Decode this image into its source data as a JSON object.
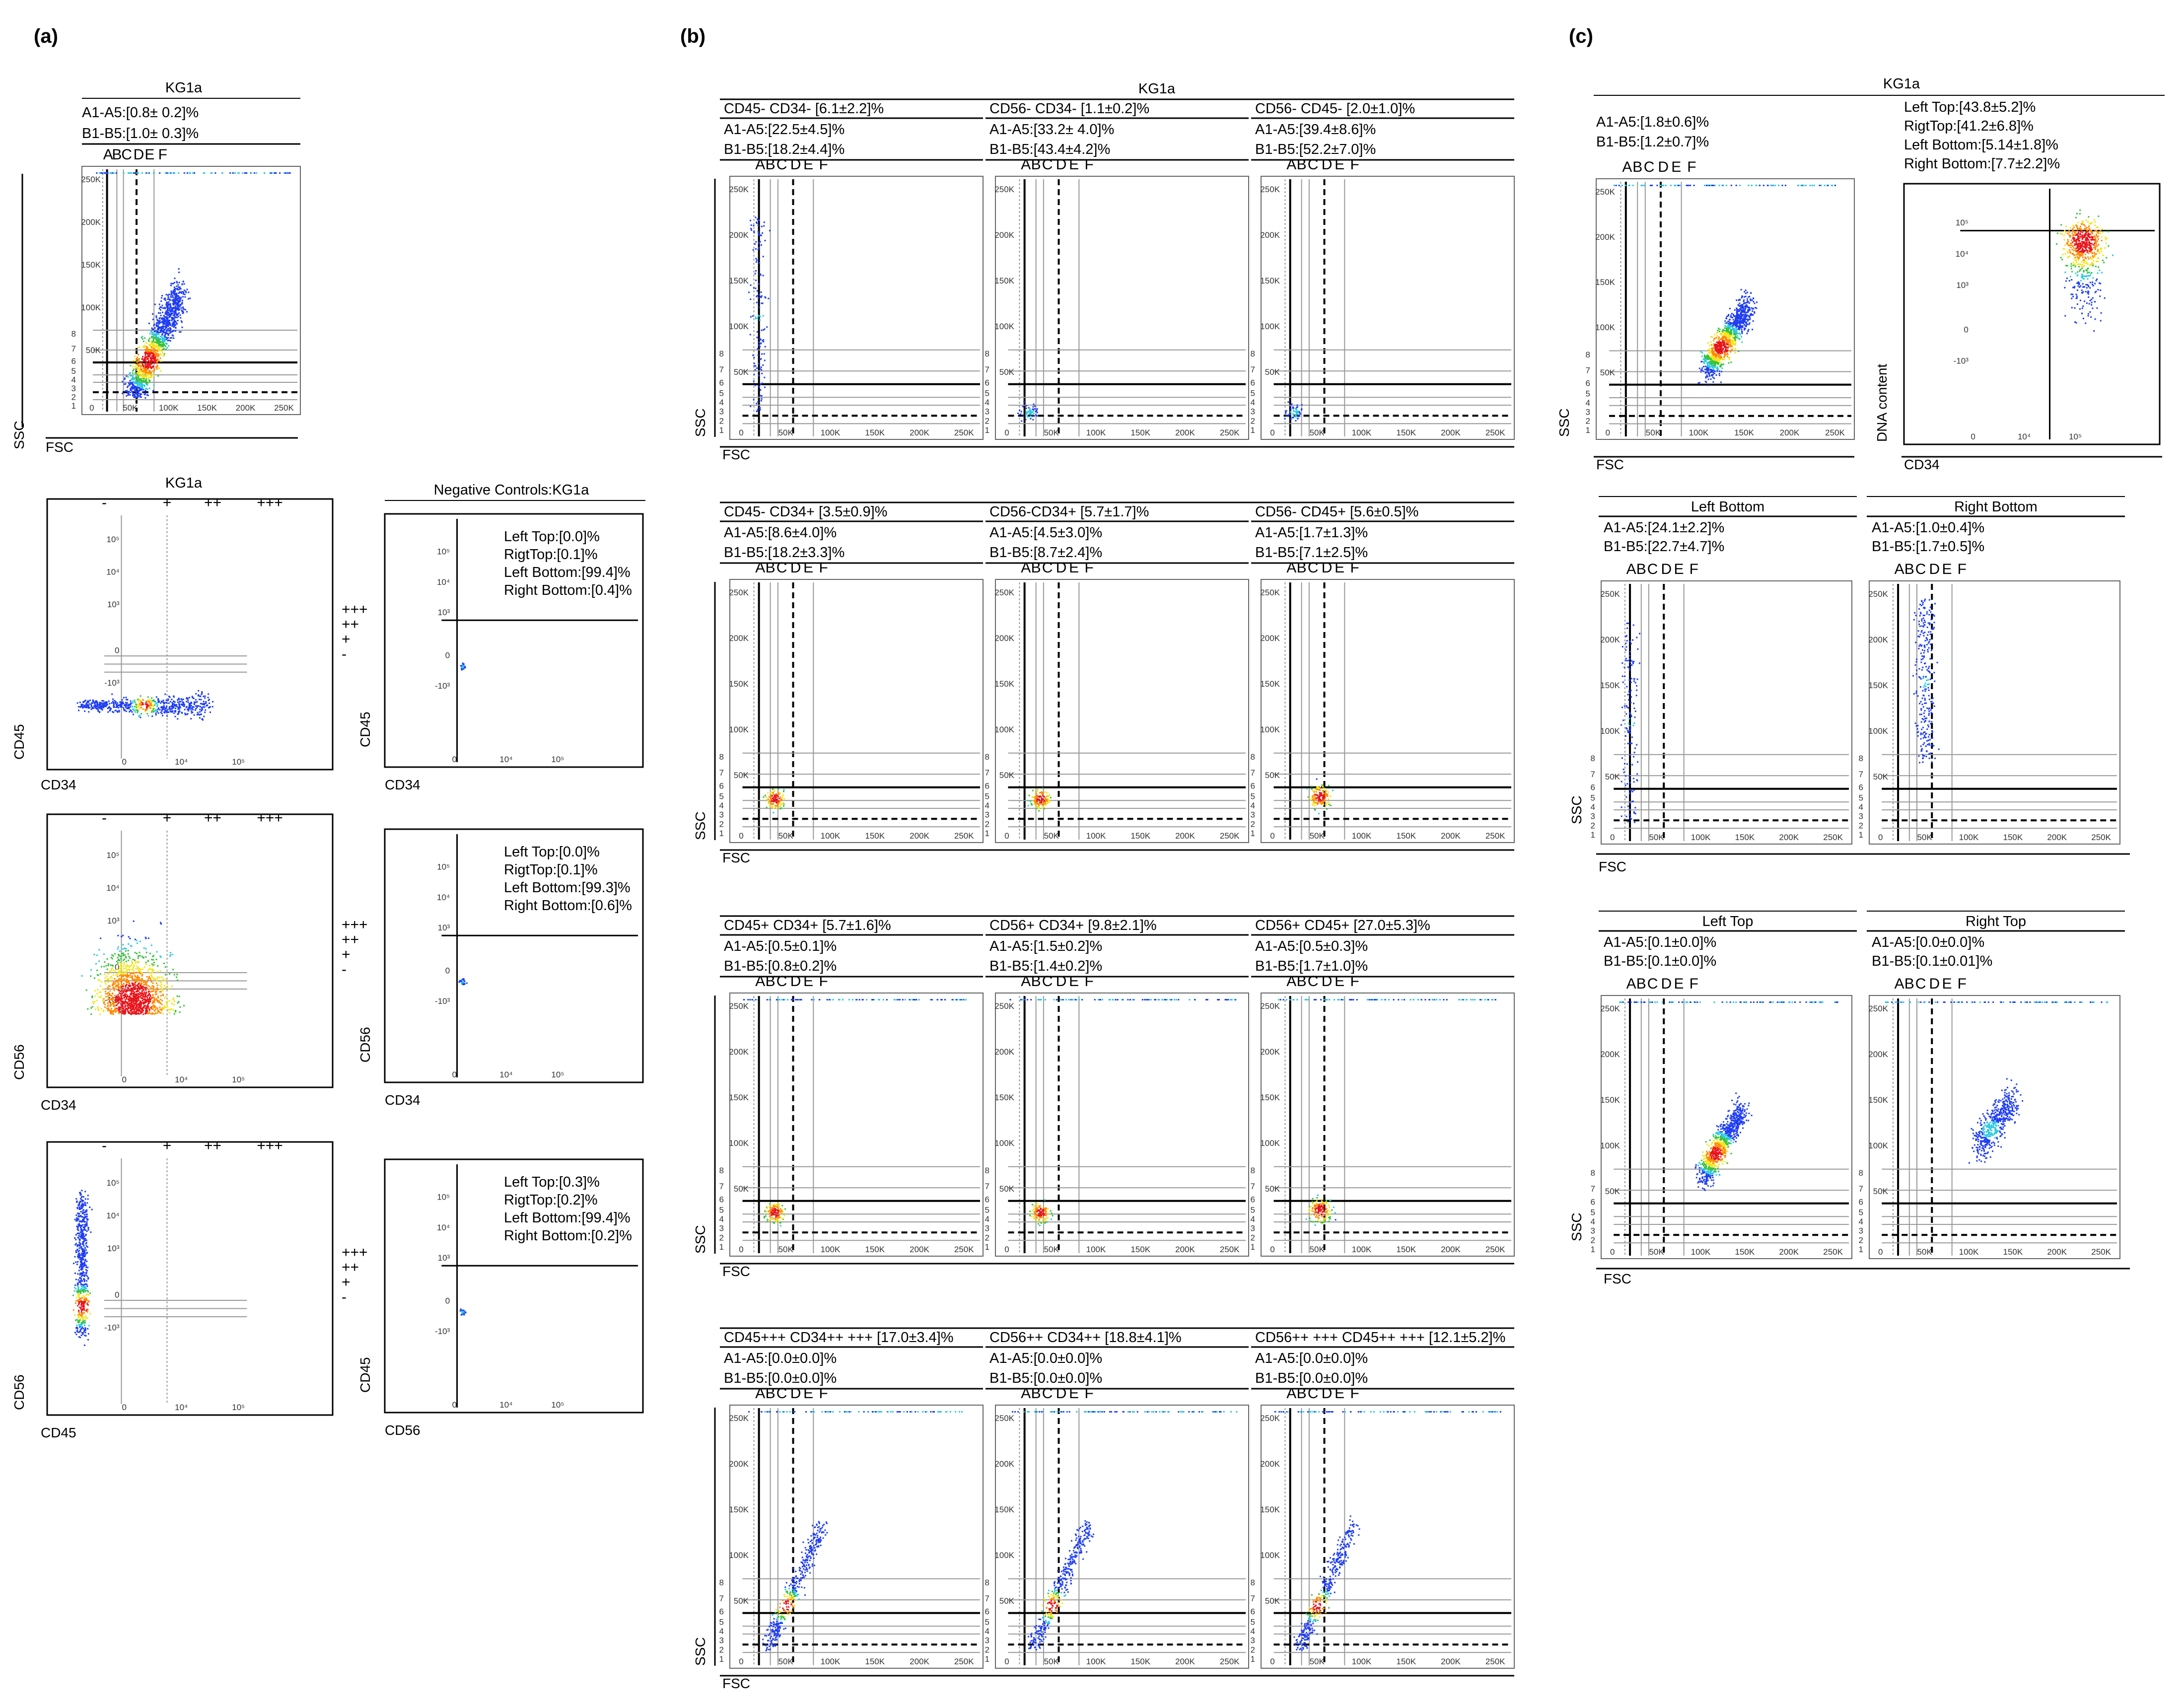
{
  "panels": {
    "a": "(a)",
    "b": "(b)",
    "c": "(c)"
  },
  "colors": {
    "density": [
      "#1f3df2",
      "#2cc8e0",
      "#34c23a",
      "#f2e51a",
      "#ff8a00",
      "#e8141a"
    ],
    "frame": "#000000",
    "grid": "#9a9a9a"
  },
  "labels": {
    "fsc": "FSC",
    "ssc": "SSC",
    "cd34": "CD34",
    "cd45": "CD45",
    "cd56": "CD56",
    "dna": "DNA content",
    "fsc_ticks": [
      "0",
      "50K",
      "100K",
      "150K",
      "200K",
      "250K"
    ],
    "ssc_ticks": [
      "250K",
      "200K",
      "150K",
      "100K",
      "50K",
      "0"
    ],
    "log_ticks": [
      "0",
      "10⁴",
      "10⁵"
    ],
    "log_yticks": [
      "10⁵",
      "10⁴",
      "10³",
      "0",
      "-10³"
    ],
    "gates_x": [
      "A",
      "B",
      "C",
      "D",
      "E",
      "F"
    ],
    "gates_y": [
      "8",
      "7",
      "6",
      "5",
      "4",
      "3",
      "2",
      "1"
    ],
    "intensity": [
      "-",
      "+",
      "++",
      "+++"
    ],
    "intensity_side": [
      "+++",
      "++",
      "+",
      "-"
    ]
  },
  "chart_data": [
    {
      "id": "a-fsc-ssc",
      "type": "scatter",
      "title": "KG1a",
      "stats": [
        "A1-A5:[0.8± 0.2]%",
        "B1-B5:[1.0± 0.3]%"
      ],
      "xlabel": "FSC",
      "ylabel": "SSC",
      "xlim": [
        0,
        262144
      ],
      "ylim": [
        0,
        262144
      ]
    },
    {
      "id": "a-cd34-cd45",
      "type": "scatter",
      "title": "KG1a",
      "xlabel": "CD34",
      "ylabel": "CD45",
      "scale": "biexponential"
    },
    {
      "id": "a-cd34-cd56",
      "type": "scatter",
      "xlabel": "CD34",
      "ylabel": "CD56",
      "scale": "biexponential"
    },
    {
      "id": "a-cd45-cd56",
      "type": "scatter",
      "xlabel": "CD45",
      "ylabel": "CD56",
      "scale": "biexponential"
    },
    {
      "id": "a-neg-1",
      "type": "scatter",
      "title": "Negative Controls:KG1a",
      "xlabel": "CD34",
      "ylabel": "CD45",
      "quadrants": [
        "Left Top:[0.0]%",
        "RigtTop:[0.1]%",
        "Left Bottom:[99.4]%",
        "Right Bottom:[0.4]%"
      ]
    },
    {
      "id": "a-neg-2",
      "type": "scatter",
      "xlabel": "CD34",
      "ylabel": "CD56",
      "quadrants": [
        "Left Top:[0.0]%",
        "RigtTop:[0.1]%",
        "Left Bottom:[99.3]%",
        "Right Bottom:[0.6]%"
      ]
    },
    {
      "id": "a-neg-3",
      "type": "scatter",
      "xlabel": "CD56",
      "ylabel": "CD45",
      "quadrants": [
        "Left Top:[0.3]%",
        "RigtTop:[0.2]%",
        "Left Bottom:[99.4]%",
        "Right Bottom:[0.2]%"
      ]
    },
    {
      "id": "b-overview",
      "type": "scatter",
      "title": "KG1a",
      "xlabel": "FSC",
      "ylabel": "SSC",
      "xlim": [
        0,
        262144
      ],
      "ylim": [
        0,
        262144
      ],
      "rows": [
        [
          {
            "name": "CD45- CD34- [6.1±2.2]%",
            "stats": [
              "A1-A5:[22.5±4.5]%",
              "B1-B5:[18.2±4.4]%"
            ]
          },
          {
            "name": "CD56- CD34- [1.1±0.2]%",
            "stats": [
              "A1-A5:[33.2± 4.0]%",
              "B1-B5:[43.4±4.2]%"
            ]
          },
          {
            "name": "CD56- CD45- [2.0±1.0]%",
            "stats": [
              "A1-A5:[39.4±8.6]%",
              "B1-B5:[52.2±7.0]%"
            ]
          }
        ],
        [
          {
            "name": "CD45- CD34+ [3.5±0.9]%",
            "stats": [
              "A1-A5:[8.6±4.0]%",
              "B1-B5:[18.2±3.3]%"
            ]
          },
          {
            "name": "CD56-CD34+ [5.7±1.7]%",
            "stats": [
              "A1-A5:[4.5±3.0]%",
              "B1-B5:[8.7±2.4]%"
            ]
          },
          {
            "name": "CD56- CD45+ [5.6±0.5]%",
            "stats": [
              "A1-A5:[1.7±1.3]%",
              "B1-B5:[7.1±2.5]%"
            ]
          }
        ],
        [
          {
            "name": "CD45+ CD34+ [5.7±1.6]%",
            "stats": [
              "A1-A5:[0.5±0.1]%",
              "B1-B5:[0.8±0.2]%"
            ]
          },
          {
            "name": "CD56+ CD34+ [9.8±2.1]%",
            "stats": [
              "A1-A5:[1.5±0.2]%",
              "B1-B5:[1.4±0.2]%"
            ]
          },
          {
            "name": "CD56+ CD45+  [27.0±5.3]%",
            "stats": [
              "A1-A5:[0.5±0.3]%",
              "B1-B5:[1.7±1.0]%"
            ]
          }
        ],
        [
          {
            "name": "CD45+++ CD34++ +++ [17.0±3.4]%",
            "stats": [
              "A1-A5:[0.0±0.0]%",
              "B1-B5:[0.0±0.0]%"
            ]
          },
          {
            "name": "CD56++ CD34++ [18.8±4.1]%",
            "stats": [
              "A1-A5:[0.0±0.0]%",
              "B1-B5:[0.0±0.0]%"
            ]
          },
          {
            "name": "CD56++ +++ CD45++ +++ [12.1±5.2]%",
            "stats": [
              "A1-A5:[0.0±0.0]%",
              "B1-B5:[0.0±0.0]%"
            ]
          }
        ]
      ]
    },
    {
      "id": "c-fsc-ssc",
      "type": "scatter",
      "title": "KG1a",
      "stats": [
        "A1-A5:[1.8±0.6]%",
        "B1-B5:[1.2±0.7]%"
      ],
      "xlabel": "FSC",
      "ylabel": "SSC"
    },
    {
      "id": "c-cd34-dna",
      "type": "scatter",
      "xlabel": "CD34",
      "ylabel": "DNA content",
      "quadrants": [
        "Left Top:[43.8±5.2]%",
        "RigtTop:[41.2±6.8]%",
        "Left Bottom:[5.14±1.8]%",
        "Right Bottom:[7.7±2.2]%"
      ]
    },
    {
      "id": "c-left-bottom",
      "type": "scatter",
      "title": "Left Bottom",
      "stats": [
        "A1-A5:[24.1±2.2]%",
        "B1-B5:[22.7±4.7]%"
      ],
      "xlabel": "FSC",
      "ylabel": "SSC"
    },
    {
      "id": "c-right-bottom",
      "type": "scatter",
      "title": "Right Bottom",
      "stats": [
        "A1-A5:[1.0±0.4]%",
        "B1-B5:[1.7±0.5]%"
      ]
    },
    {
      "id": "c-left-top",
      "type": "scatter",
      "title": "Left Top",
      "stats": [
        "A1-A5:[0.1±0.0]%",
        "B1-B5:[0.1±0.0]%"
      ],
      "xlabel": "FSC",
      "ylabel": "SSC"
    },
    {
      "id": "c-right-top",
      "type": "scatter",
      "title": "Right Top",
      "stats": [
        "A1-A5:[0.0±0.0]%",
        "B1-B5:[0.1±0.01]%"
      ]
    }
  ]
}
